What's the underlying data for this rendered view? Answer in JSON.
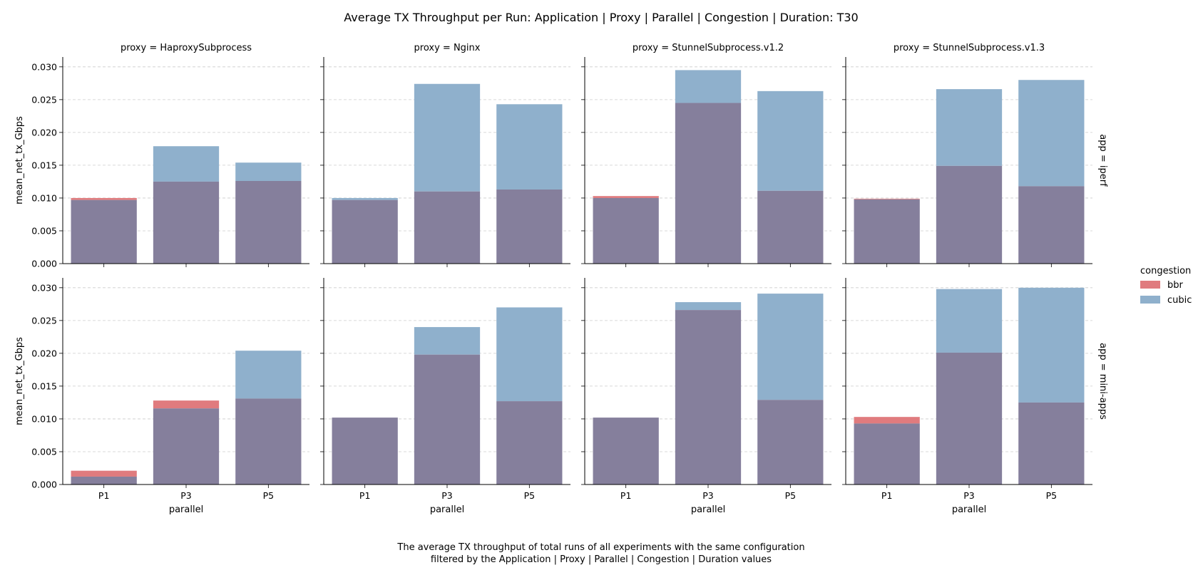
{
  "chart_data": {
    "type": "bar",
    "title": "Average TX Throughput per Run: Application | Proxy | Parallel | Congestion | Duration: T30",
    "caption_lines": [
      "The average TX throughput of total runs of all experiments with the same configuration",
      "filtered by the Application | Proxy | Parallel | Congestion | Duration values"
    ],
    "xlabel": "parallel",
    "ylabel": "mean_net_tx_Gbps",
    "categories": [
      "P1",
      "P3",
      "P5"
    ],
    "ylim": [
      0,
      0.0315
    ],
    "yticks": [
      0.0,
      0.005,
      0.01,
      0.015,
      0.02,
      0.025,
      0.03
    ],
    "ytick_labels": [
      "0.000",
      "0.005",
      "0.010",
      "0.015",
      "0.020",
      "0.025",
      "0.030"
    ],
    "grid": "y-dashed",
    "legend": {
      "title": "congestion",
      "placement": "right",
      "entries": [
        {
          "name": "bbr",
          "color": "#e07b7e"
        },
        {
          "name": "cubic",
          "color": "#8fb0cc"
        }
      ]
    },
    "overlap_color": "#857f9c",
    "columns": [
      "proxy = HaproxySubprocess",
      "proxy = Nginx",
      "proxy = StunnelSubprocess.v1.2",
      "proxy = StunnelSubprocess.v1.3"
    ],
    "rows": [
      "app = iperf",
      "app = mini-apps"
    ],
    "facets": [
      [
        {
          "bbr": [
            0.01,
            0.0125,
            0.0126
          ],
          "cubic": [
            0.0097,
            0.0179,
            0.0154
          ]
        },
        {
          "bbr": [
            0.0097,
            0.011,
            0.0113
          ],
          "cubic": [
            0.01,
            0.0274,
            0.0243
          ]
        },
        {
          "bbr": [
            0.0103,
            0.0245,
            0.0111
          ],
          "cubic": [
            0.01,
            0.0295,
            0.0263
          ]
        },
        {
          "bbr": [
            0.0099,
            0.0149,
            0.0118
          ],
          "cubic": [
            0.0098,
            0.0266,
            0.028
          ]
        }
      ],
      [
        {
          "bbr": [
            0.0021,
            0.0128,
            0.0131
          ],
          "cubic": [
            0.0012,
            0.0116,
            0.0204
          ]
        },
        {
          "bbr": [
            0.0102,
            0.0198,
            0.0127
          ],
          "cubic": [
            0.0102,
            0.024,
            0.027
          ]
        },
        {
          "bbr": [
            0.0102,
            0.0266,
            0.0129
          ],
          "cubic": [
            0.0102,
            0.0278,
            0.0291
          ]
        },
        {
          "bbr": [
            0.0103,
            0.0201,
            0.0125
          ],
          "cubic": [
            0.0093,
            0.0298,
            0.03
          ]
        }
      ]
    ]
  }
}
